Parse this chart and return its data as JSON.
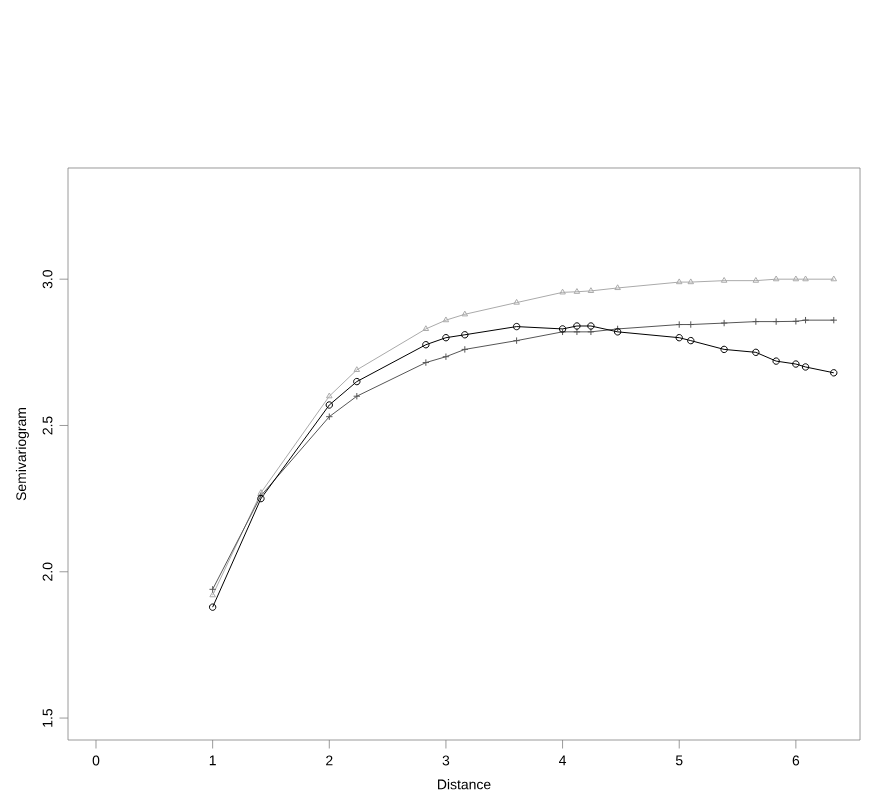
{
  "chart_data": {
    "type": "line",
    "xlabel": "Distance",
    "ylabel": "Semivariogram",
    "x": [
      1,
      1.414,
      2,
      2.236,
      2.828,
      3,
      3.162,
      3.606,
      4,
      4.123,
      4.243,
      4.472,
      5,
      5.099,
      5.385,
      5.657,
      5.831,
      6,
      6.083,
      6.325
    ],
    "series": [
      {
        "color": "#aaaaaa",
        "marker": "triangle",
        "values": [
          1.92,
          2.27,
          2.6,
          2.69,
          2.83,
          2.86,
          2.88,
          2.92,
          2.955,
          2.957,
          2.96,
          2.97,
          2.99,
          2.99,
          2.995,
          2.995,
          3.0,
          3.0,
          3.0,
          3.0
        ]
      },
      {
        "color": "#555555",
        "marker": "cross",
        "values": [
          1.94,
          2.26,
          2.53,
          2.6,
          2.715,
          2.735,
          2.76,
          2.79,
          2.82,
          2.82,
          2.82,
          2.83,
          2.845,
          2.845,
          2.85,
          2.855,
          2.855,
          2.856,
          2.86,
          2.86
        ]
      },
      {
        "color": "#000000",
        "marker": "circle",
        "values": [
          1.879,
          2.25,
          2.57,
          2.65,
          2.776,
          2.8,
          2.81,
          2.838,
          2.83,
          2.84,
          2.84,
          2.82,
          2.8,
          2.79,
          2.76,
          2.75,
          2.72,
          2.71,
          2.7,
          2.68
        ]
      }
    ],
    "xlim": [
      -0.24,
      6.55
    ],
    "ylim": [
      1.425,
      3.38
    ],
    "xticks": [
      0,
      1,
      2,
      3,
      4,
      5,
      6
    ],
    "yticks": [
      1.5,
      {
        "value": 2,
        "label": "2.0"
      },
      2.5,
      {
        "value": 3,
        "label": "3.0"
      }
    ],
    "grid": false,
    "line_style": "solid"
  }
}
